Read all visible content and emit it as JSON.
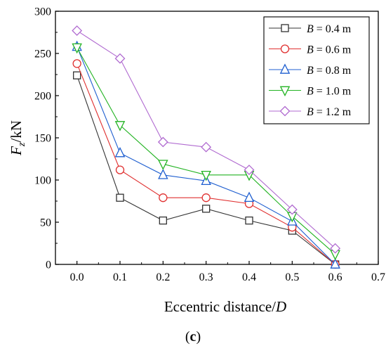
{
  "chart_data": {
    "type": "line",
    "title": "",
    "xlabel": "Eccentric distance/D",
    "ylabel": "Fz/kN",
    "xlim": [
      -0.05,
      0.7
    ],
    "ylim": [
      0,
      300
    ],
    "xticks": [
      "0.0",
      "0.1",
      "0.2",
      "0.3",
      "0.4",
      "0.5",
      "0.6",
      "0.7"
    ],
    "yticks": [
      "0",
      "50",
      "100",
      "150",
      "200",
      "250",
      "300"
    ],
    "x": [
      0.0,
      0.1,
      0.2,
      0.3,
      0.4,
      0.5,
      0.6
    ],
    "grid": false,
    "legend_position": "top-right",
    "series": [
      {
        "name": "B = 0.4 m",
        "color": "#333333",
        "marker": "square",
        "values": [
          224,
          79,
          52,
          66,
          52,
          40,
          0
        ]
      },
      {
        "name": "B = 0.6 m",
        "color": "#e03030",
        "marker": "circle",
        "values": [
          238,
          112,
          79,
          79,
          72,
          44,
          0
        ]
      },
      {
        "name": "B = 0.8 m",
        "color": "#1f5fd0",
        "marker": "triangle-up",
        "values": [
          258,
          132,
          106,
          99,
          79,
          51,
          0
        ]
      },
      {
        "name": "B = 1.0 m",
        "color": "#22b322",
        "marker": "triangle-down",
        "values": [
          257,
          165,
          119,
          106,
          106,
          57,
          12
        ]
      },
      {
        "name": "B = 1.2 m",
        "color": "#b06ad0",
        "marker": "diamond",
        "values": [
          277,
          244,
          145,
          139,
          112,
          65,
          19
        ]
      }
    ]
  },
  "caption": {
    "prefix": "(",
    "label": "c",
    "suffix": ")"
  }
}
